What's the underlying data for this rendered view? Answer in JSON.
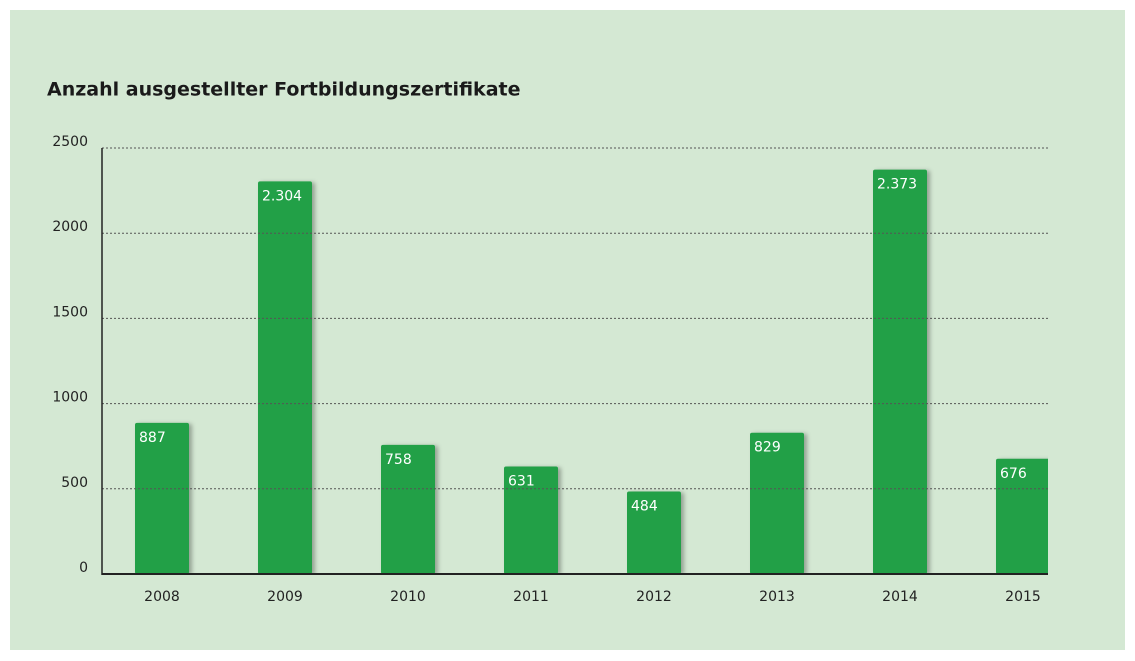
{
  "chart_data": {
    "type": "bar",
    "title": "Anzahl ausgestellter Fortbildungszertifikate",
    "categories": [
      "2008",
      "2009",
      "2010",
      "2011",
      "2012",
      "2013",
      "2014",
      "2015"
    ],
    "values": [
      887,
      2304,
      758,
      631,
      484,
      829,
      2373,
      676
    ],
    "value_labels": [
      "887",
      "2.304",
      "758",
      "631",
      "484",
      "829",
      "2.373",
      "676"
    ],
    "color": "#21a047",
    "ylim": [
      0,
      2500
    ],
    "yticks": [
      0,
      500,
      1000,
      1500,
      2000,
      2500
    ],
    "grid": true
  }
}
